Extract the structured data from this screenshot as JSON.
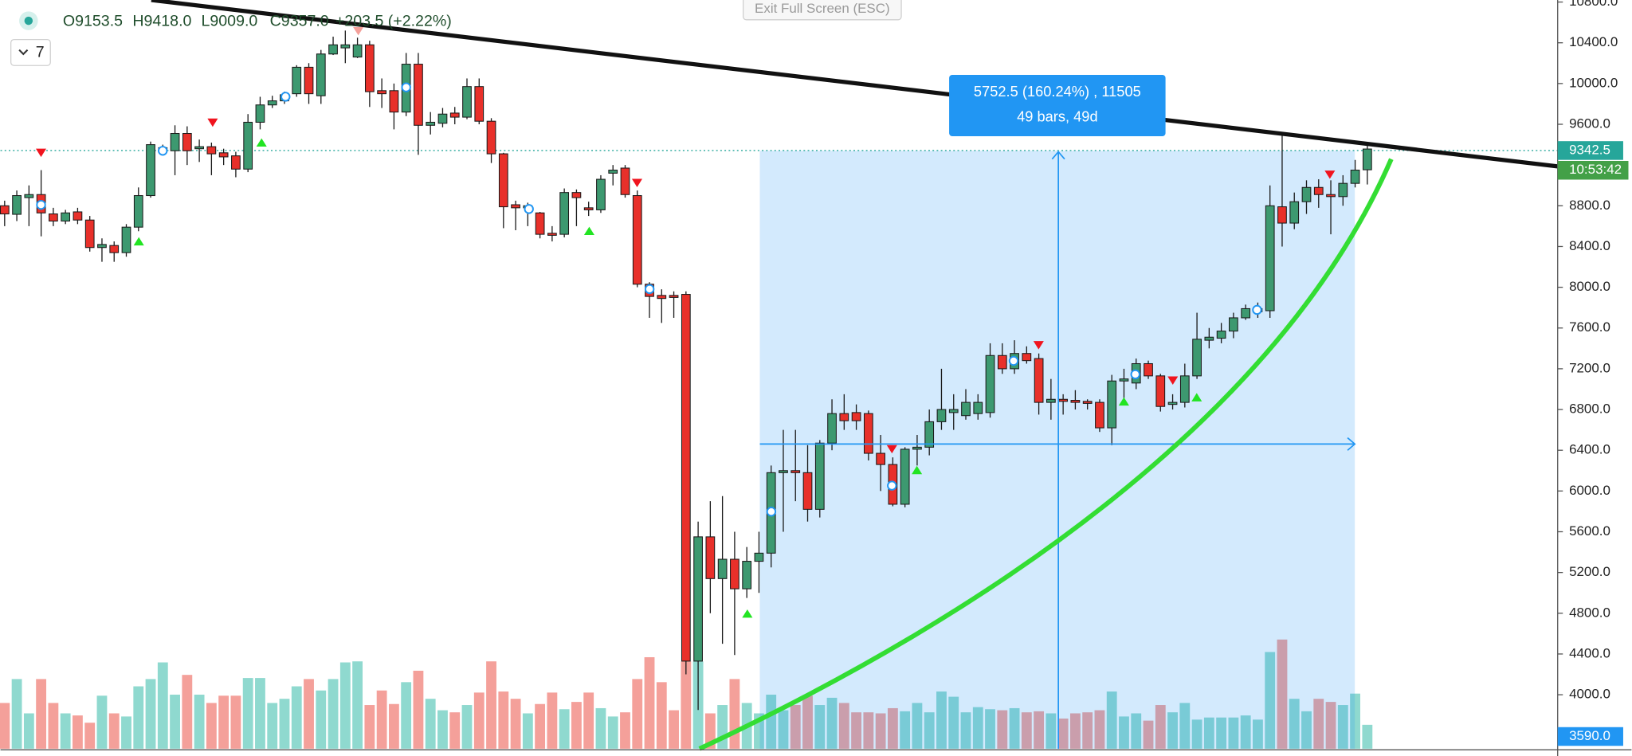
{
  "chart_data": {
    "type": "candlestick",
    "ohlc_labels": [
      "O9153.5",
      "H9418.0",
      "L9009.0",
      "C9357.0",
      "+203.5 (+2.22%)"
    ],
    "indicator_count": "7",
    "exit_button": "Exit Full Screen (ESC)",
    "measure_labels": [
      "5752.5 (160.24%) , 11505",
      "49 bars, 49d"
    ],
    "countdown": {
      "text": "10:53:42",
      "color": "#43a047"
    },
    "price_labels": [
      {
        "value": 9342.5,
        "color": "#26a69a"
      },
      {
        "value": 3590,
        "label": "3590.0",
        "color": "#2196f3"
      }
    ],
    "up_color": "#3d9970",
    "down_color": "#e8302a",
    "volume_up_color": "#8fd9cf",
    "volume_down_color": "#f4a09a",
    "ylim": [
      3470,
      10820
    ],
    "yticks": [
      {
        "value": 10800,
        "label": "10800.0"
      },
      {
        "value": 10400,
        "label": "10400.0"
      },
      {
        "value": 10000,
        "label": "10000.0"
      },
      {
        "value": 9600,
        "label": "9600.0"
      },
      {
        "value": 8800,
        "label": "8800.0"
      },
      {
        "value": 8400,
        "label": "8400.0"
      },
      {
        "value": 8000,
        "label": "8000.0"
      },
      {
        "value": 7600,
        "label": "7600.0"
      },
      {
        "value": 7200,
        "label": "7200.0"
      },
      {
        "value": 6800,
        "label": "6800.0"
      },
      {
        "value": 6400,
        "label": "6400.0"
      },
      {
        "value": 6000,
        "label": "6000.0"
      },
      {
        "value": 5600,
        "label": "5600.0"
      },
      {
        "value": 5200,
        "label": "5200.0"
      },
      {
        "value": 4800,
        "label": "4800.0"
      },
      {
        "value": 4400,
        "label": "4400.0"
      },
      {
        "value": 4000,
        "label": "4000.0"
      }
    ],
    "grid": false,
    "open": [
      8800,
      8716,
      8880,
      8910,
      8720,
      8650,
      8740,
      8660,
      8390,
      8410,
      8340,
      8590,
      8900,
      9340,
      9340,
      9510,
      9360,
      9380,
      9320,
      9290,
      9160,
      9620,
      9790,
      9830,
      9900,
      10160,
      9880,
      10290,
      10350,
      10260,
      10380,
      9930,
      9930,
      9720,
      10190,
      9590,
      9610,
      9710,
      9670,
      9970,
      9630,
      9310,
      8810,
      8780,
      8730,
      8530,
      8520,
      8930,
      8780,
      8760,
      9120,
      9170,
      8900,
      8030,
      7920,
      7920,
      7930,
      4330,
      5550,
      5140,
      5330,
      5040,
      5310,
      5390,
      6180,
      6200,
      6180,
      5820,
      6470,
      6760,
      6770,
      6760,
      6370,
      6260,
      5870,
      6410,
      6430,
      6680,
      6770,
      6740,
      6760,
      6770,
      7330,
      7200,
      7350,
      7300,
      6870,
      6900,
      6890,
      6880,
      6870,
      6620,
      7080,
      7060,
      7250,
      7130,
      6850,
      6870,
      7130,
      7480,
      7500,
      7570,
      7700,
      7760,
      7770,
      8790,
      8630,
      8840,
      8980,
      8910,
      8890,
      9020,
      9153.5
    ],
    "high": [
      8850,
      8950,
      9000,
      9150,
      8780,
      8760,
      8780,
      8700,
      8480,
      8450,
      8620,
      8980,
      9430,
      9400,
      9590,
      9580,
      9450,
      9420,
      9360,
      9330,
      9700,
      9870,
      9880,
      9920,
      10180,
      10200,
      10330,
      10460,
      10520,
      10450,
      10420,
      10050,
      10000,
      10300,
      10300,
      9720,
      9760,
      9770,
      10050,
      10050,
      9660,
      9320,
      8850,
      8830,
      8740,
      8600,
      8970,
      8960,
      8840,
      9100,
      9200,
      9200,
      8950,
      8050,
      7980,
      7960,
      7960,
      5700,
      5900,
      5950,
      5600,
      5450,
      5600,
      6250,
      6600,
      6600,
      6450,
      6500,
      6900,
      6950,
      6850,
      6790,
      6550,
      6330,
      6430,
      6550,
      6800,
      7200,
      6950,
      7000,
      6950,
      7450,
      7450,
      7480,
      7420,
      7350,
      7100,
      6950,
      6990,
      6900,
      6900,
      7140,
      7200,
      7300,
      7280,
      7150,
      6950,
      7250,
      7750,
      7600,
      7650,
      7750,
      7830,
      7850,
      9000,
      9500,
      8930,
      9050,
      9060,
      9050,
      9100,
      9250,
      9418
    ],
    "low": [
      8600,
      8650,
      8600,
      8500,
      8600,
      8620,
      8620,
      8350,
      8250,
      8250,
      8300,
      8550,
      8880,
      9300,
      9100,
      9200,
      9230,
      9100,
      9200,
      9080,
      9130,
      9550,
      9760,
      9800,
      9870,
      9800,
      9800,
      10280,
      10200,
      10250,
      9770,
      9760,
      9550,
      9680,
      9300,
      9500,
      9570,
      9600,
      9650,
      9600,
      9220,
      8580,
      8560,
      8600,
      8480,
      8450,
      8490,
      8600,
      8700,
      8730,
      9000,
      8880,
      8000,
      7700,
      7650,
      7700,
      4200,
      3850,
      4800,
      4500,
      4390,
      4950,
      5000,
      5250,
      5600,
      5900,
      5700,
      5740,
      6400,
      6600,
      6600,
      6300,
      6000,
      5850,
      5840,
      6250,
      6350,
      6600,
      6600,
      6700,
      6700,
      6720,
      7150,
      7150,
      7250,
      6750,
      6700,
      6750,
      6800,
      6800,
      6580,
      6450,
      6900,
      7000,
      7100,
      6780,
      6800,
      6820,
      7100,
      7400,
      7450,
      7500,
      7680,
      7700,
      7700,
      8400,
      8570,
      8720,
      8780,
      8520,
      8800,
      8980,
      9009
    ],
    "close": [
      8720,
      8900,
      8910,
      8730,
      8650,
      8730,
      8660,
      8390,
      8420,
      8340,
      8590,
      8900,
      9400,
      9370,
      9510,
      9340,
      9380,
      9310,
      9280,
      9160,
      9620,
      9790,
      9830,
      9890,
      10160,
      9900,
      10290,
      10380,
      10380,
      10380,
      9920,
      9900,
      9720,
      10190,
      9590,
      9620,
      9700,
      9670,
      9970,
      9630,
      9310,
      8790,
      8780,
      8800,
      8520,
      8510,
      8930,
      8880,
      8760,
      9060,
      9150,
      8910,
      8030,
      7910,
      7890,
      7900,
      4330,
      5550,
      5140,
      5330,
      5040,
      5310,
      5390,
      6180,
      6200,
      6180,
      5820,
      6470,
      6760,
      6690,
      6690,
      6370,
      6260,
      5870,
      6410,
      6430,
      6680,
      6800,
      6800,
      6870,
      6870,
      7330,
      7200,
      7350,
      7280,
      6870,
      6900,
      6880,
      6870,
      6860,
      6620,
      7080,
      7100,
      7250,
      7130,
      6830,
      6870,
      7130,
      7490,
      7510,
      7570,
      7700,
      7790,
      7790,
      8800,
      8630,
      8840,
      8980,
      8910,
      8890,
      9020,
      9150,
      9357
    ],
    "volume": [
      44,
      67,
      34,
      67,
      44,
      34,
      32,
      25,
      51,
      34,
      31,
      60,
      67,
      83,
      52,
      71,
      52,
      44,
      51,
      51,
      68,
      68,
      44,
      48,
      60,
      67,
      56,
      67,
      83,
      84,
      42,
      56,
      43,
      64,
      75,
      48,
      37,
      35,
      42,
      54,
      84,
      55,
      48,
      34,
      43,
      54,
      38,
      45,
      54,
      39,
      31,
      35,
      67,
      88,
      64,
      37,
      84,
      84,
      34,
      42,
      67,
      44,
      34,
      52,
      37,
      42,
      51,
      42,
      49,
      44,
      35,
      35,
      34,
      39,
      36,
      44,
      35,
      55,
      50,
      35,
      40,
      38,
      37,
      39,
      35,
      36,
      34,
      29,
      34,
      35,
      37,
      55,
      31,
      34,
      27,
      42,
      35,
      44,
      28,
      30,
      30,
      30,
      32,
      28,
      93,
      105,
      48,
      36,
      48,
      45,
      42,
      53,
      23
    ]
  }
}
